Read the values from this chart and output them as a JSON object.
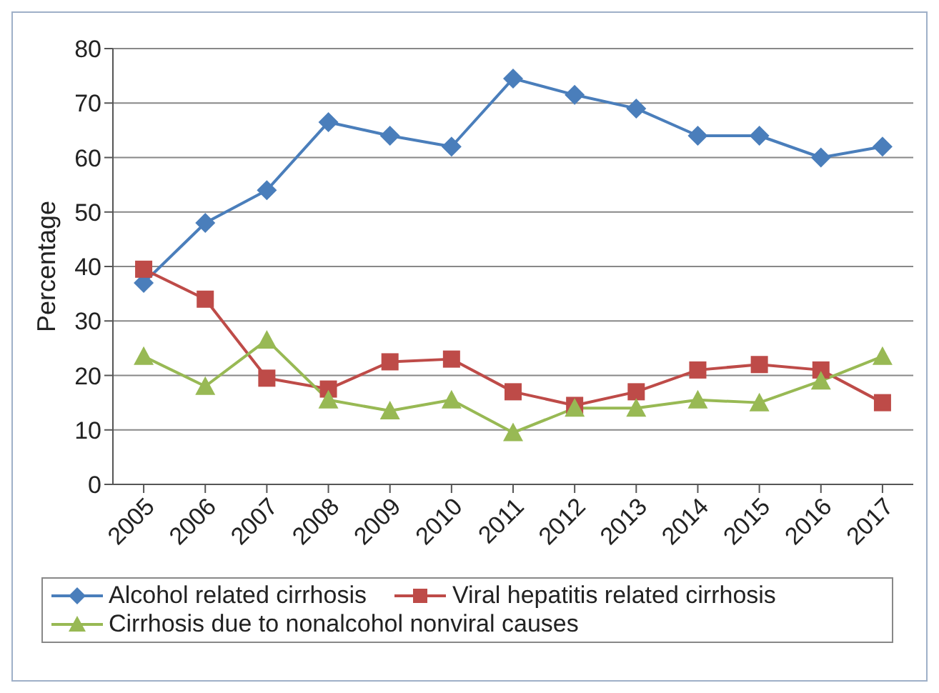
{
  "chart_data": {
    "type": "line",
    "ylabel": "Percentage",
    "categories": [
      "2005",
      "2006",
      "2007",
      "2008",
      "2009",
      "2010",
      "2011",
      "2012",
      "2013",
      "2014",
      "2015",
      "2016",
      "2017"
    ],
    "series": [
      {
        "name": "Alcohol related cirrhosis",
        "color": "#4a7ebb",
        "marker": "diamond",
        "values": [
          37,
          48,
          54,
          66.5,
          64,
          62,
          74.5,
          71.5,
          69,
          64,
          64,
          60,
          62
        ]
      },
      {
        "name": "Viral hepatitis related cirrhosis",
        "color": "#be4b48",
        "marker": "square",
        "values": [
          39.5,
          34,
          19.5,
          17.5,
          22.5,
          23,
          17,
          14.5,
          17,
          21,
          22,
          21,
          15
        ]
      },
      {
        "name": "Cirrhosis due to nonalcohol nonviral causes",
        "color": "#98b954",
        "marker": "triangle",
        "values": [
          23.5,
          18,
          26.5,
          15.5,
          13.5,
          15.5,
          9.5,
          14,
          14,
          15.5,
          15,
          19,
          23.5
        ]
      }
    ],
    "ylim": [
      0,
      80
    ],
    "yticks": [
      0,
      10,
      20,
      30,
      40,
      50,
      60,
      70,
      80
    ],
    "grid": "y",
    "legend": "bottom"
  }
}
